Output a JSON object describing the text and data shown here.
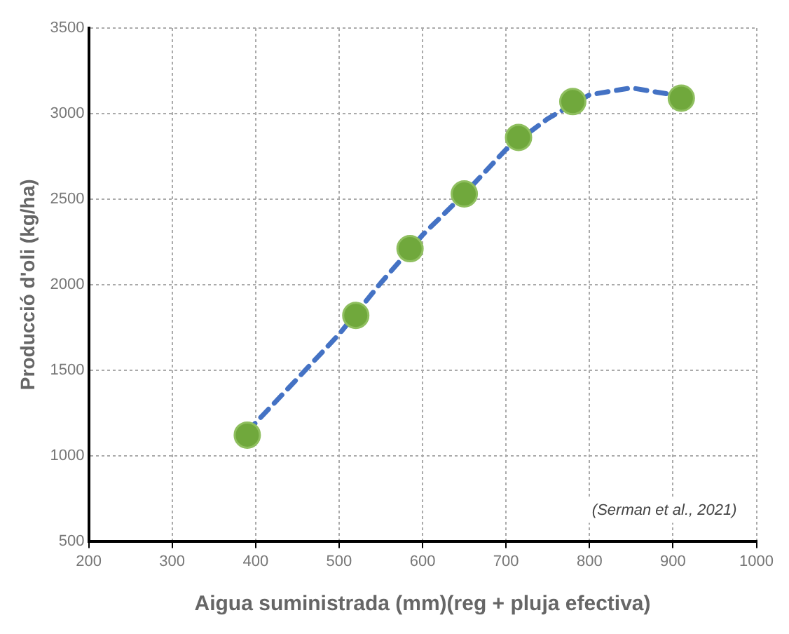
{
  "chart_data": {
    "type": "scatter",
    "xlabel": "Aigua suministrada (mm)(reg + pluja efectiva)",
    "ylabel": "Producció d'oli (kg/ha)",
    "annotations": [
      "(Serman et al., 2021)"
    ],
    "x": [
      390,
      520,
      585,
      650,
      715,
      780,
      910
    ],
    "series": [
      {
        "color": "#70a83c",
        "marker": "circle",
        "values": [
          1120,
          1820,
          2210,
          2530,
          2860,
          3070,
          3090
        ]
      },
      {
        "type": "line",
        "color": "#4472c4",
        "line_style": "dashed",
        "marker": "none",
        "x": [
          390,
          450,
          500,
          550,
          600,
          650,
          700,
          750,
          800,
          850,
          900,
          910
        ],
        "values": [
          1140,
          1450,
          1710,
          2010,
          2290,
          2530,
          2790,
          2970,
          3110,
          3150,
          3110,
          3100
        ]
      }
    ],
    "xlim": [
      200,
      1000
    ],
    "xticks": [
      200,
      300,
      400,
      500,
      600,
      700,
      800,
      900,
      1000
    ],
    "ylim": [
      500,
      3500
    ],
    "yticks": [
      500,
      1000,
      1500,
      2000,
      2500,
      3000,
      3500
    ],
    "grid": true,
    "legend": false
  }
}
